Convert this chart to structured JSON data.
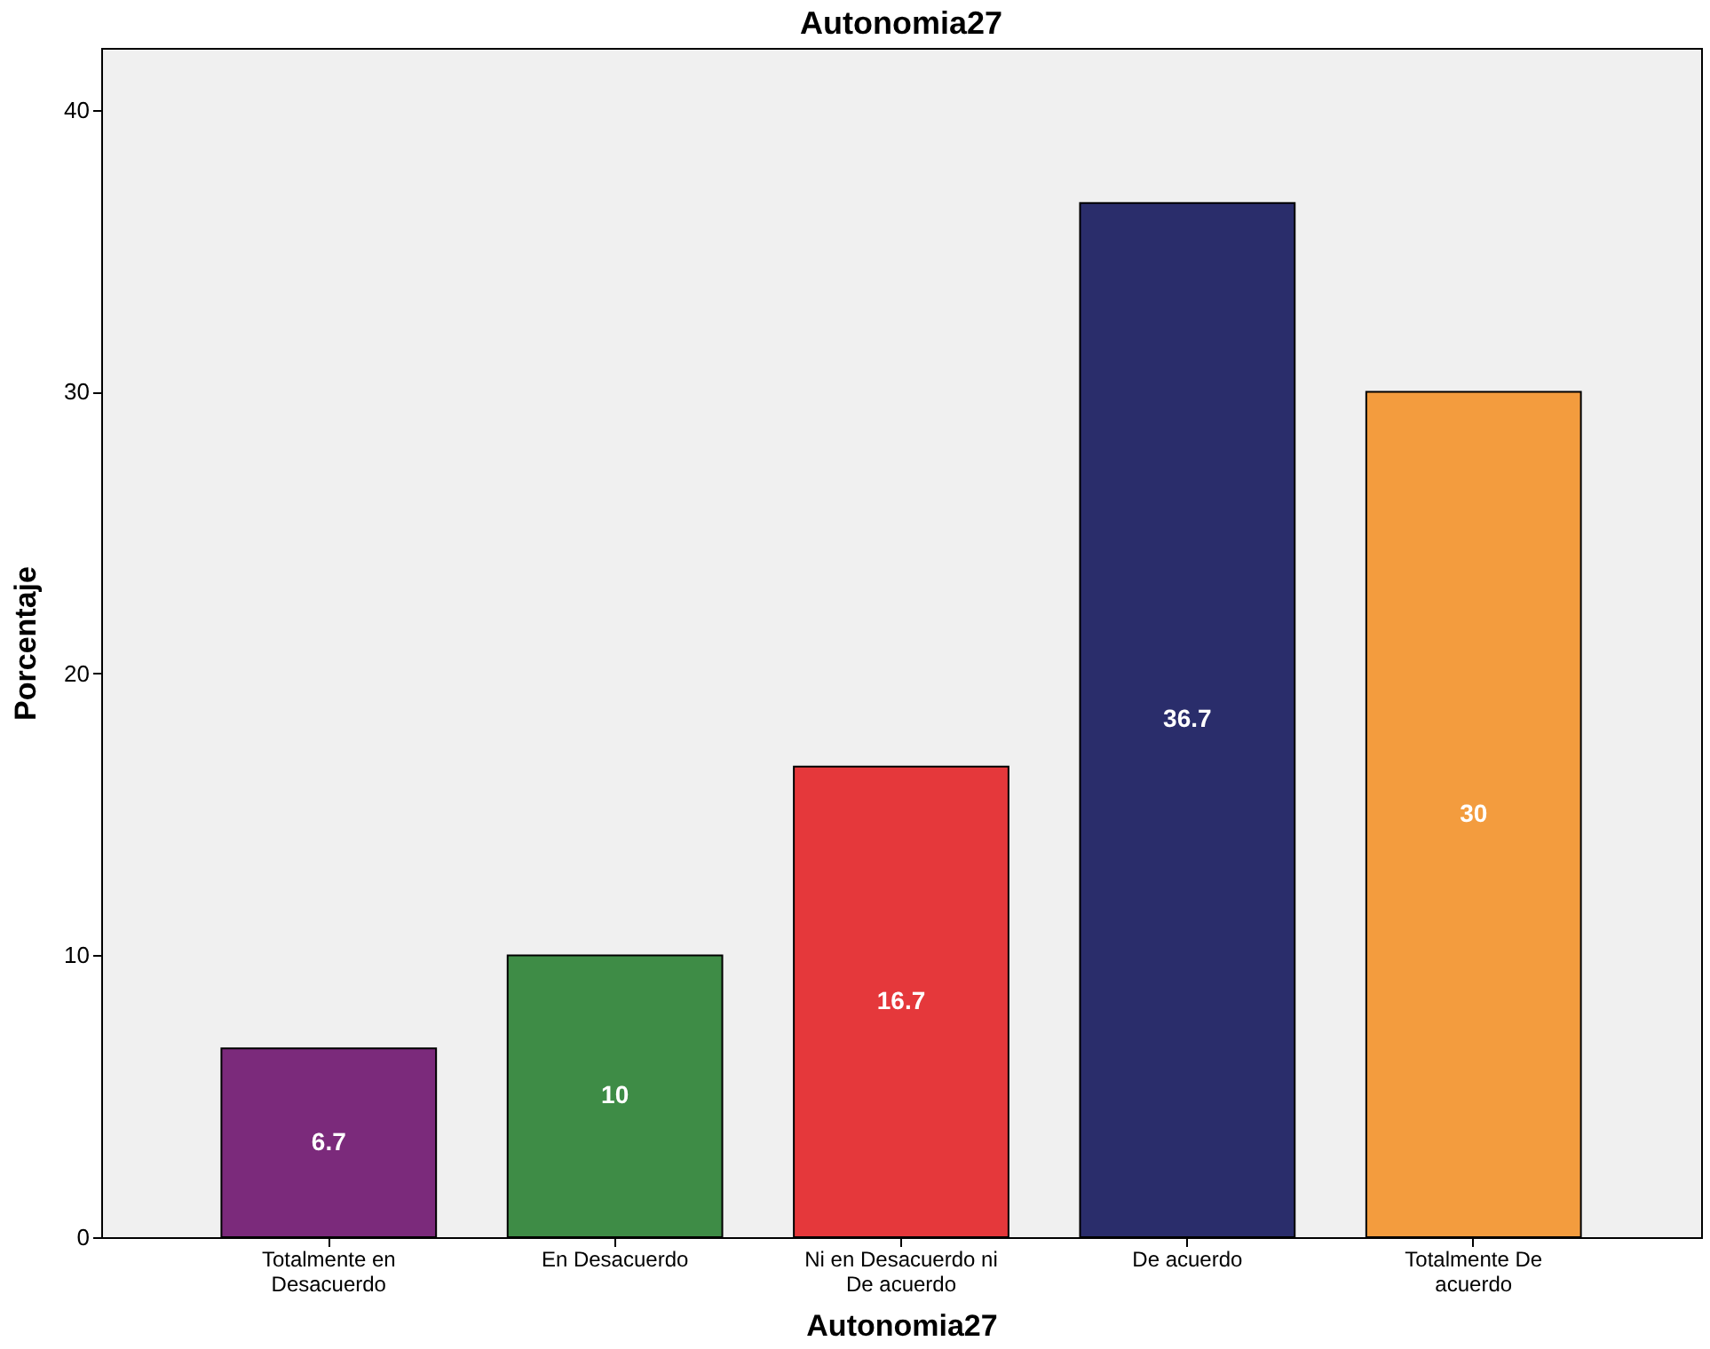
{
  "chart_data": {
    "type": "bar",
    "title": "Autonomia27",
    "xlabel": "Autonomia27",
    "ylabel": "Porcentaje",
    "categories": [
      "Totalmente en Desacuerdo",
      "En Desacuerdo",
      "Ni en Desacuerdo ni De acuerdo",
      "De acuerdo",
      "Totalmente De acuerdo"
    ],
    "values": [
      6.7,
      10,
      16.7,
      36.7,
      30
    ],
    "colors": [
      "#7b2a7b",
      "#3e8c46",
      "#e5383b",
      "#2a2d6b",
      "#f39c3e"
    ],
    "ylim": [
      0,
      42.2
    ],
    "yticks": [
      0,
      10,
      20,
      30,
      40
    ],
    "grid": false,
    "data_labels": true
  }
}
